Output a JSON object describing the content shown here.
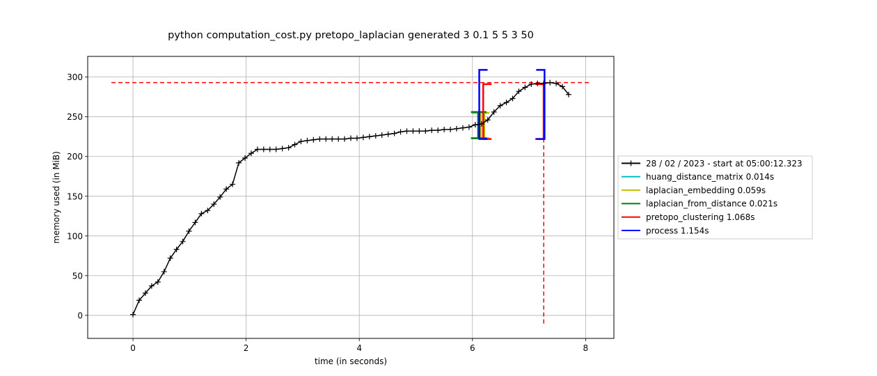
{
  "chart_data": {
    "type": "line",
    "title": "python computation_cost.py pretopo_laplacian generated 3 0.1 5 5 3 50",
    "xlabel": "time (in seconds)",
    "ylabel": "memory used (in MiB)",
    "xlim": [
      -0.8,
      8.5
    ],
    "ylim": [
      -29,
      326
    ],
    "xticks": [
      0,
      2,
      4,
      6,
      8
    ],
    "yticks": [
      0,
      50,
      100,
      150,
      200,
      250,
      300
    ],
    "grid": true,
    "legend_position": "right",
    "series": [
      {
        "name": "28 / 02 / 2023 - start at 05:00:12.323",
        "color": "#000000",
        "marker": "+",
        "x": [
          0,
          0.11,
          0.22,
          0.33,
          0.44,
          0.55,
          0.66,
          0.77,
          0.88,
          0.99,
          1.1,
          1.21,
          1.32,
          1.43,
          1.54,
          1.65,
          1.76,
          1.87,
          1.98,
          2.09,
          2.2,
          2.31,
          2.42,
          2.53,
          2.64,
          2.75,
          2.86,
          2.97,
          3.08,
          3.19,
          3.3,
          3.41,
          3.52,
          3.63,
          3.74,
          3.85,
          3.96,
          4.07,
          4.18,
          4.29,
          4.4,
          4.51,
          4.62,
          4.73,
          4.84,
          4.95,
          5.06,
          5.17,
          5.28,
          5.39,
          5.5,
          5.61,
          5.72,
          5.83,
          5.94,
          6.05,
          6.16,
          6.27,
          6.38,
          6.49,
          6.6,
          6.71,
          6.82,
          6.93,
          7.04,
          7.15,
          7.26,
          7.37,
          7.48,
          7.59,
          7.7
        ],
        "y": [
          1,
          19,
          28,
          37,
          42,
          55,
          72,
          83,
          93,
          106,
          117,
          128,
          132,
          140,
          149,
          159,
          165,
          192,
          198,
          204,
          209,
          209,
          209,
          209,
          210,
          211,
          215,
          219,
          220,
          221,
          222,
          222,
          222,
          222,
          222,
          223,
          223,
          224,
          225,
          226,
          227,
          228,
          229,
          231,
          232,
          232,
          232,
          232,
          233,
          233,
          234,
          234,
          235,
          236,
          237,
          240,
          241,
          246,
          256,
          264,
          268,
          273,
          282,
          287,
          291,
          292,
          292,
          293,
          292,
          288,
          278
        ]
      }
    ],
    "function_brackets": [
      {
        "name": "huang_distance_matrix 0.014s",
        "color": "#00bfbf",
        "start": 6.12,
        "end": 6.134,
        "low": 223,
        "high": 255
      },
      {
        "name": "laplacian_embedding 0.059s",
        "color": "#bfbf00",
        "start": 6.15,
        "end": 6.209,
        "low": 223,
        "high": 255
      },
      {
        "name": "laplacian_from_distance 0.021s",
        "color": "#008000",
        "start": 6.1,
        "end": 6.121,
        "low": 223,
        "high": 256
      },
      {
        "name": "pretopo_clustering 1.068s",
        "color": "#ff0000",
        "start": 6.19,
        "end": 7.258,
        "low": 222,
        "high": 291
      },
      {
        "name": "process 1.154s",
        "color": "#0000ff",
        "start": 6.12,
        "end": 7.274,
        "low": 222,
        "high": 309
      }
    ],
    "max_memory_line": {
      "y": 293,
      "x": 7.26,
      "color": "#ff0000"
    }
  }
}
